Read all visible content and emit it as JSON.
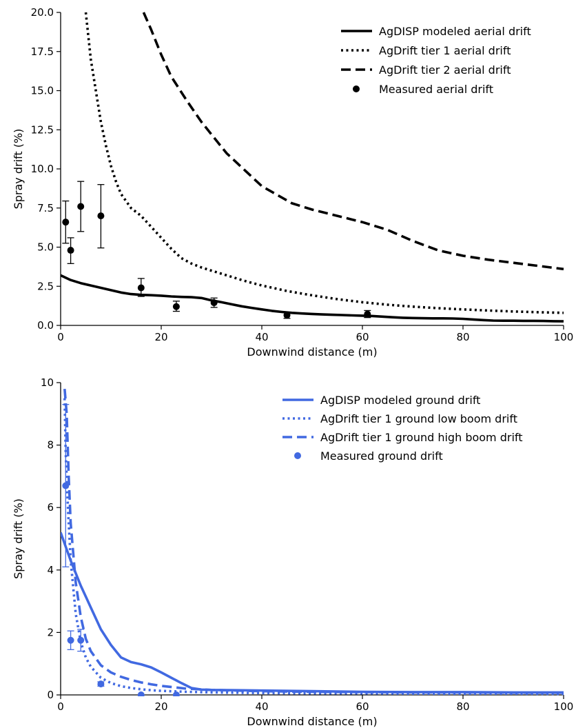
{
  "chart_data": [
    {
      "type": "line",
      "title": "",
      "xlabel": "Downwind distance (m)",
      "ylabel": "Spray drift (%)",
      "xlim": [
        0,
        100
      ],
      "ylim": [
        0,
        20
      ],
      "xticks": [
        "0",
        "20",
        "40",
        "60",
        "80",
        "100"
      ],
      "yticks": [
        "0.0",
        "2.5",
        "5.0",
        "7.5",
        "10.0",
        "12.5",
        "15.0",
        "17.5",
        "20.0"
      ],
      "legend_position": "top-right",
      "grid": false,
      "color": "#000000",
      "series": [
        {
          "name": "AgDISP modeled aerial drift",
          "style": "solid",
          "x": [
            0,
            2,
            4,
            6,
            8,
            10,
            12,
            14,
            16,
            18,
            20,
            22,
            24,
            26,
            28,
            30,
            32,
            34,
            36,
            38,
            40,
            42,
            44,
            46,
            48,
            50,
            52,
            54,
            56,
            58,
            60,
            62,
            64,
            66,
            68,
            70,
            72,
            74,
            76,
            78,
            80,
            82,
            84,
            86,
            88,
            90,
            92,
            94,
            96,
            98,
            100
          ],
          "y": [
            3.2,
            2.9,
            2.7,
            2.55,
            2.4,
            2.25,
            2.1,
            2.0,
            1.95,
            1.93,
            1.9,
            1.85,
            1.82,
            1.8,
            1.75,
            1.6,
            1.48,
            1.35,
            1.22,
            1.12,
            1.02,
            0.93,
            0.86,
            0.8,
            0.76,
            0.73,
            0.7,
            0.68,
            0.66,
            0.64,
            0.62,
            0.6,
            0.56,
            0.52,
            0.49,
            0.47,
            0.46,
            0.45,
            0.45,
            0.44,
            0.42,
            0.38,
            0.34,
            0.31,
            0.3,
            0.3,
            0.29,
            0.29,
            0.28,
            0.27,
            0.26
          ]
        },
        {
          "name": "AgDrift tier 1 aerial drift",
          "style": "dotted",
          "x": [
            5,
            6,
            7,
            8,
            9,
            10,
            11,
            12,
            14,
            16,
            18,
            20,
            22,
            24,
            26,
            28,
            30,
            32,
            34,
            36,
            38,
            40,
            45,
            50,
            55,
            60,
            65,
            70,
            75,
            80,
            85,
            90,
            95,
            100
          ],
          "y": [
            20.0,
            17.0,
            15.0,
            13.0,
            11.5,
            10.2,
            9.2,
            8.4,
            7.5,
            7.0,
            6.3,
            5.6,
            4.9,
            4.3,
            3.95,
            3.7,
            3.5,
            3.3,
            3.1,
            2.9,
            2.72,
            2.55,
            2.2,
            1.92,
            1.68,
            1.48,
            1.32,
            1.2,
            1.1,
            1.02,
            0.95,
            0.89,
            0.84,
            0.8
          ]
        },
        {
          "name": "AgDrift tier 2 aerial drift",
          "style": "dashed",
          "x": [
            16.5,
            18,
            20,
            22,
            25,
            28,
            30,
            33,
            36,
            38,
            40,
            43,
            46,
            50,
            55,
            60,
            65,
            70,
            75,
            80,
            85,
            90,
            95,
            100
          ],
          "y": [
            20.0,
            18.9,
            17.3,
            15.9,
            14.4,
            13.0,
            12.2,
            11.0,
            10.1,
            9.5,
            8.9,
            8.35,
            7.8,
            7.4,
            7.0,
            6.6,
            6.1,
            5.4,
            4.8,
            4.45,
            4.2,
            4.0,
            3.8,
            3.6
          ]
        }
      ],
      "measured": {
        "name": "Measured aerial drift",
        "x": [
          1,
          2,
          4,
          8,
          16,
          23,
          30.5,
          45,
          61
        ],
        "y": [
          6.6,
          4.8,
          7.6,
          7.0,
          2.4,
          1.2,
          1.45,
          0.65,
          0.72
        ],
        "err_low": [
          5.25,
          3.95,
          6.0,
          4.95,
          1.85,
          0.9,
          1.15,
          0.45,
          0.5
        ],
        "err_high": [
          7.95,
          5.6,
          9.2,
          9.0,
          3.0,
          1.55,
          1.75,
          0.85,
          0.95
        ]
      }
    },
    {
      "type": "line",
      "title": "",
      "xlabel": "Downwind distance (m)",
      "ylabel": "Spray drift (%)",
      "xlim": [
        0,
        100
      ],
      "ylim": [
        0,
        10
      ],
      "xticks": [
        "0",
        "20",
        "40",
        "60",
        "80",
        "100"
      ],
      "yticks": [
        "0",
        "2",
        "4",
        "6",
        "8",
        "10"
      ],
      "legend_position": "top-right",
      "grid": false,
      "color": "#4169e1",
      "series": [
        {
          "name": "AgDISP modeled ground drift",
          "style": "solid",
          "x": [
            0,
            2,
            4,
            6,
            8,
            10,
            12,
            14,
            16,
            18,
            20,
            22,
            24,
            26,
            28,
            30,
            35,
            40,
            50,
            60,
            70,
            80,
            90,
            100
          ],
          "y": [
            5.2,
            4.3,
            3.5,
            2.8,
            2.1,
            1.6,
            1.2,
            1.05,
            0.98,
            0.88,
            0.72,
            0.55,
            0.38,
            0.22,
            0.17,
            0.16,
            0.15,
            0.14,
            0.12,
            0.1,
            0.09,
            0.09,
            0.08,
            0.08
          ]
        },
        {
          "name": "AgDrift tier 1 ground low boom drift",
          "style": "dotted",
          "x": [
            0.8,
            1.0,
            1.5,
            2,
            3,
            4,
            5,
            6,
            8,
            10,
            12,
            14,
            16,
            18,
            20,
            25,
            30,
            40,
            50,
            60,
            70,
            80,
            90,
            100
          ],
          "y": [
            9.5,
            7.8,
            5.8,
            4.3,
            2.6,
            1.7,
            1.2,
            0.9,
            0.55,
            0.38,
            0.28,
            0.22,
            0.18,
            0.15,
            0.13,
            0.1,
            0.08,
            0.06,
            0.05,
            0.05,
            0.04,
            0.04,
            0.04,
            0.03
          ]
        },
        {
          "name": "AgDrift tier 1 ground high boom drift",
          "style": "dashed",
          "x": [
            0.8,
            1.2,
            1.6,
            2,
            3,
            4,
            5,
            6,
            8,
            10,
            12,
            14,
            16,
            18,
            20,
            25,
            30,
            40,
            50,
            60,
            70,
            80,
            90,
            100
          ],
          "y": [
            9.8,
            9.0,
            7.0,
            5.5,
            3.6,
            2.5,
            1.8,
            1.4,
            0.95,
            0.72,
            0.58,
            0.48,
            0.4,
            0.34,
            0.29,
            0.2,
            0.16,
            0.12,
            0.1,
            0.09,
            0.08,
            0.08,
            0.07,
            0.07
          ]
        }
      ],
      "measured": {
        "name": "Measured ground drift",
        "x": [
          1,
          2,
          4,
          8,
          16,
          23
        ],
        "y": [
          6.7,
          1.75,
          1.75,
          0.35,
          0.0,
          0.0
        ],
        "err_low": [
          4.1,
          1.45,
          1.4,
          0.28,
          0.0,
          0.0
        ],
        "err_high": [
          9.3,
          2.05,
          2.1,
          0.42,
          0.0,
          0.0
        ]
      }
    }
  ]
}
